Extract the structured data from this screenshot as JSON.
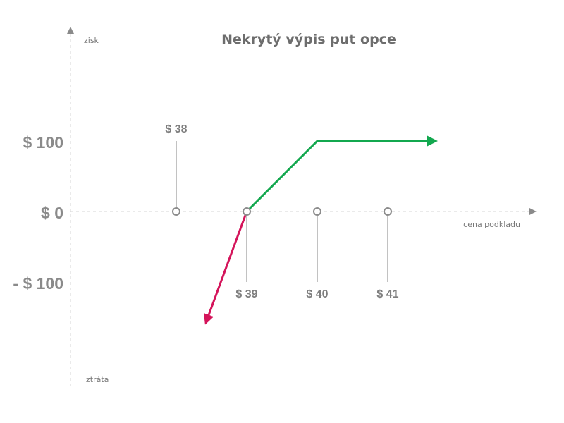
{
  "chart_data": {
    "type": "line",
    "title": "Nekrytý výpis put opce",
    "ylabel_top": "zisk",
    "ylabel_bottom": "ztráta",
    "xlabel": "cena podkladu",
    "y_ticks": [
      "$ 100",
      "$ 0",
      "- $ 100"
    ],
    "y_tick_values": [
      100,
      0,
      -100
    ],
    "strikes": [
      {
        "label": "$ 38",
        "value": 38
      },
      {
        "label": "$ 39",
        "value": 39
      },
      {
        "label": "$ 40",
        "value": 40
      },
      {
        "label": "$ 41",
        "value": 41
      }
    ],
    "xlim": [
      36.5,
      42.5
    ],
    "ylim": [
      -125,
      200
    ],
    "series": [
      {
        "values": [
          [
            38.43,
            -155
          ],
          [
            39,
            0
          ]
        ],
        "color": "#d4145a",
        "arrow": "start"
      },
      {
        "values": [
          [
            39,
            0
          ],
          [
            40,
            100
          ],
          [
            41.65,
            100
          ]
        ],
        "color": "#13a84f",
        "arrow": "end"
      }
    ],
    "grid": false,
    "legend": "none"
  }
}
